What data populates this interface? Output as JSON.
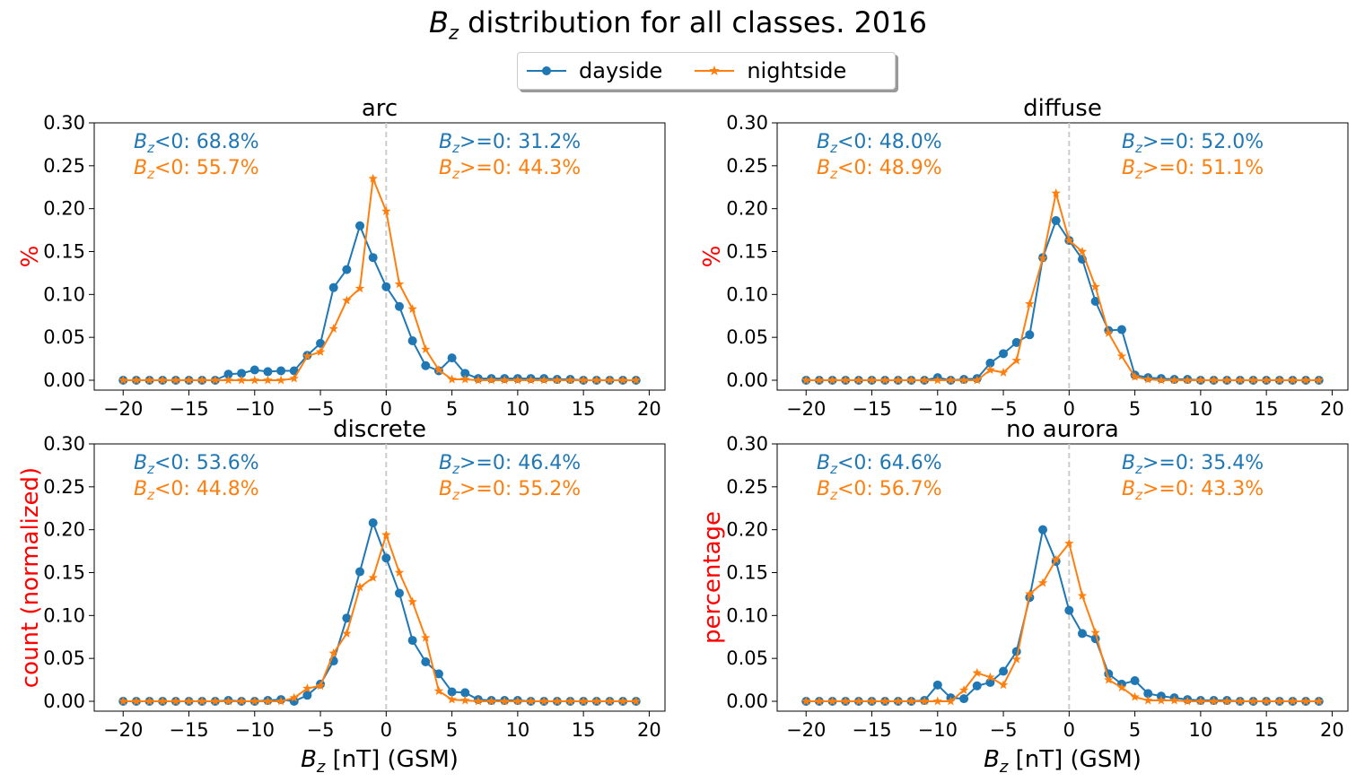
{
  "figure": {
    "title_prefix": "B",
    "title_sub": "z",
    "title_rest": " distribution for all classes. 2016",
    "legend": [
      {
        "label": "dayside",
        "color": "#1f77b4",
        "marker": "circle"
      },
      {
        "label": "nightside",
        "color": "#ff7f0e",
        "marker": "star"
      }
    ],
    "xlabel_parts": {
      "var": "B",
      "sub": "z",
      "rest": " [nT] (GSM)"
    },
    "ylabel_color": "#ff0000"
  },
  "chart_data": [
    {
      "type": "line",
      "title": "arc",
      "ylabel": "%",
      "xlabel": "",
      "xlim": [
        -20,
        19
      ],
      "ylim": [
        0,
        0.3
      ],
      "xticks": [
        -20,
        -15,
        -10,
        -5,
        0,
        5,
        10,
        15,
        20
      ],
      "yticks": [
        "0.00",
        "0.05",
        "0.10",
        "0.15",
        "0.20",
        "0.25",
        "0.30"
      ],
      "x": [
        -20,
        -19,
        -18,
        -17,
        -16,
        -15,
        -14,
        -13,
        -12,
        -11,
        -10,
        -9,
        -8,
        -7,
        -6,
        -5,
        -4,
        -3,
        -2,
        -1,
        0,
        1,
        2,
        3,
        4,
        5,
        6,
        7,
        8,
        9,
        10,
        11,
        12,
        13,
        14,
        15,
        16,
        17,
        18,
        19
      ],
      "series": [
        {
          "name": "dayside",
          "color": "#1f77b4",
          "marker": "circle",
          "values": [
            0,
            0,
            0,
            0,
            0,
            0,
            0,
            0,
            0.007,
            0.008,
            0.012,
            0.01,
            0.011,
            0.011,
            0.029,
            0.043,
            0.108,
            0.129,
            0.18,
            0.143,
            0.109,
            0.086,
            0.046,
            0.017,
            0.011,
            0.026,
            0.008,
            0.002,
            0.002,
            0.002,
            0.002,
            0.002,
            0.002,
            0.001,
            0.001,
            0,
            0,
            0,
            0,
            0
          ]
        },
        {
          "name": "nightside",
          "color": "#ff7f0e",
          "marker": "star",
          "values": [
            0,
            0,
            0,
            0,
            0,
            0,
            0,
            0,
            0,
            0,
            0,
            0,
            0,
            0.002,
            0.028,
            0.033,
            0.06,
            0.093,
            0.107,
            0.235,
            0.197,
            0.112,
            0.083,
            0.036,
            0.012,
            0.001,
            0.001,
            0,
            0,
            0,
            0,
            0,
            0,
            0,
            0,
            0,
            0,
            0,
            0,
            0
          ]
        }
      ],
      "annotations": [
        {
          "prefix": "B",
          "sub": "z",
          "rest": "<0:  68.8%",
          "color": "#1f77b4",
          "side": "left",
          "row": 0
        },
        {
          "prefix": "B",
          "sub": "z",
          "rest": "<0:  55.7%",
          "color": "#ff7f0e",
          "side": "left",
          "row": 1
        },
        {
          "prefix": "B",
          "sub": "z",
          "rest": ">=0: 31.2%",
          "color": "#1f77b4",
          "side": "right",
          "row": 0
        },
        {
          "prefix": "B",
          "sub": "z",
          "rest": ">=0: 44.3%",
          "color": "#ff7f0e",
          "side": "right",
          "row": 1
        }
      ]
    },
    {
      "type": "line",
      "title": "diffuse",
      "ylabel": "%",
      "xlabel": "",
      "xlim": [
        -20,
        19
      ],
      "ylim": [
        0,
        0.3
      ],
      "xticks": [
        -20,
        -15,
        -10,
        -5,
        0,
        5,
        10,
        15,
        20
      ],
      "yticks": [
        "0.00",
        "0.05",
        "0.10",
        "0.15",
        "0.20",
        "0.25",
        "0.30"
      ],
      "x": [
        -20,
        -19,
        -18,
        -17,
        -16,
        -15,
        -14,
        -13,
        -12,
        -11,
        -10,
        -9,
        -8,
        -7,
        -6,
        -5,
        -4,
        -3,
        -2,
        -1,
        0,
        1,
        2,
        3,
        4,
        5,
        6,
        7,
        8,
        9,
        10,
        11,
        12,
        13,
        14,
        15,
        16,
        17,
        18,
        19
      ],
      "series": [
        {
          "name": "dayside",
          "color": "#1f77b4",
          "marker": "circle",
          "values": [
            0,
            0,
            0,
            0,
            0,
            0,
            0,
            0,
            0,
            0,
            0.003,
            0,
            0.001,
            0.002,
            0.02,
            0.031,
            0.044,
            0.053,
            0.143,
            0.186,
            0.163,
            0.141,
            0.092,
            0.058,
            0.059,
            0.006,
            0.003,
            0.002,
            0.001,
            0.001,
            0,
            0,
            0,
            0,
            0,
            0,
            0,
            0,
            0,
            0
          ]
        },
        {
          "name": "nightside",
          "color": "#ff7f0e",
          "marker": "star",
          "values": [
            0,
            0,
            0,
            0,
            0,
            0,
            0,
            0,
            0,
            0,
            0,
            0,
            0,
            0,
            0.012,
            0.009,
            0.023,
            0.089,
            0.142,
            0.218,
            0.163,
            0.15,
            0.109,
            0.055,
            0.028,
            0.004,
            0.001,
            0,
            0,
            0,
            0,
            0,
            0,
            0,
            0,
            0,
            0,
            0,
            0,
            0
          ]
        }
      ],
      "annotations": [
        {
          "prefix": "B",
          "sub": "z",
          "rest": "<0:  48.0%",
          "color": "#1f77b4",
          "side": "left",
          "row": 0
        },
        {
          "prefix": "B",
          "sub": "z",
          "rest": "<0:  48.9%",
          "color": "#ff7f0e",
          "side": "left",
          "row": 1
        },
        {
          "prefix": "B",
          "sub": "z",
          "rest": ">=0: 52.0%",
          "color": "#1f77b4",
          "side": "right",
          "row": 0
        },
        {
          "prefix": "B",
          "sub": "z",
          "rest": ">=0: 51.1%",
          "color": "#ff7f0e",
          "side": "right",
          "row": 1
        }
      ]
    },
    {
      "type": "line",
      "title": "discrete",
      "ylabel": "count (normalized)",
      "xlabel": "Bz [nT] (GSM)",
      "xlim": [
        -20,
        19
      ],
      "ylim": [
        0,
        0.3
      ],
      "xticks": [
        -20,
        -15,
        -10,
        -5,
        0,
        5,
        10,
        15,
        20
      ],
      "yticks": [
        "0.00",
        "0.05",
        "0.10",
        "0.15",
        "0.20",
        "0.25",
        "0.30"
      ],
      "x": [
        -20,
        -19,
        -18,
        -17,
        -16,
        -15,
        -14,
        -13,
        -12,
        -11,
        -10,
        -9,
        -8,
        -7,
        -6,
        -5,
        -4,
        -3,
        -2,
        -1,
        0,
        1,
        2,
        3,
        4,
        5,
        6,
        7,
        8,
        9,
        10,
        11,
        12,
        13,
        14,
        15,
        16,
        17,
        18,
        19
      ],
      "series": [
        {
          "name": "dayside",
          "color": "#1f77b4",
          "marker": "circle",
          "values": [
            0,
            0,
            0,
            0,
            0,
            0,
            0,
            0,
            0.001,
            0,
            0,
            0.001,
            0.002,
            0,
            0.007,
            0.02,
            0.047,
            0.097,
            0.151,
            0.208,
            0.167,
            0.126,
            0.071,
            0.046,
            0.032,
            0.011,
            0.01,
            0.002,
            0.001,
            0.001,
            0.001,
            0,
            0,
            0,
            0,
            0,
            0,
            0,
            0,
            0
          ]
        },
        {
          "name": "nightside",
          "color": "#ff7f0e",
          "marker": "star",
          "values": [
            0,
            0,
            0,
            0,
            0,
            0,
            0,
            0,
            0,
            0,
            0,
            0,
            0,
            0.004,
            0.015,
            0.018,
            0.056,
            0.079,
            0.133,
            0.144,
            0.194,
            0.15,
            0.116,
            0.074,
            0.012,
            0.002,
            0.001,
            0,
            0,
            0,
            0,
            0,
            0,
            0,
            0,
            0,
            0,
            0,
            0,
            0
          ]
        }
      ],
      "annotations": [
        {
          "prefix": "B",
          "sub": "z",
          "rest": "<0:  53.6%",
          "color": "#1f77b4",
          "side": "left",
          "row": 0
        },
        {
          "prefix": "B",
          "sub": "z",
          "rest": "<0:  44.8%",
          "color": "#ff7f0e",
          "side": "left",
          "row": 1
        },
        {
          "prefix": "B",
          "sub": "z",
          "rest": ">=0: 46.4%",
          "color": "#1f77b4",
          "side": "right",
          "row": 0
        },
        {
          "prefix": "B",
          "sub": "z",
          "rest": ">=0: 55.2%",
          "color": "#ff7f0e",
          "side": "right",
          "row": 1
        }
      ]
    },
    {
      "type": "line",
      "title": "no aurora",
      "ylabel": "percentage",
      "xlabel": "Bz [nT] (GSM)",
      "xlim": [
        -20,
        19
      ],
      "ylim": [
        0,
        0.3
      ],
      "xticks": [
        -20,
        -15,
        -10,
        -5,
        0,
        5,
        10,
        15,
        20
      ],
      "yticks": [
        "0.00",
        "0.05",
        "0.10",
        "0.15",
        "0.20",
        "0.25",
        "0.30"
      ],
      "x": [
        -20,
        -19,
        -18,
        -17,
        -16,
        -15,
        -14,
        -13,
        -12,
        -11,
        -10,
        -9,
        -8,
        -7,
        -6,
        -5,
        -4,
        -3,
        -2,
        -1,
        0,
        1,
        2,
        3,
        4,
        5,
        6,
        7,
        8,
        9,
        10,
        11,
        12,
        13,
        14,
        15,
        16,
        17,
        18,
        19
      ],
      "series": [
        {
          "name": "dayside",
          "color": "#1f77b4",
          "marker": "circle",
          "values": [
            0,
            0,
            0,
            0,
            0,
            0,
            0,
            0,
            0,
            0.001,
            0.019,
            0.004,
            0.003,
            0.018,
            0.022,
            0.035,
            0.058,
            0.121,
            0.2,
            0.163,
            0.106,
            0.079,
            0.073,
            0.032,
            0.02,
            0.024,
            0.009,
            0.006,
            0.004,
            0.002,
            0.001,
            0.001,
            0.001,
            0,
            0,
            0,
            0,
            0,
            0,
            0
          ]
        },
        {
          "name": "nightside",
          "color": "#ff7f0e",
          "marker": "star",
          "values": [
            0,
            0,
            0,
            0,
            0,
            0,
            0,
            0,
            0,
            0,
            0,
            0,
            0.013,
            0.033,
            0.028,
            0.019,
            0.049,
            0.125,
            0.138,
            0.165,
            0.184,
            0.123,
            0.08,
            0.025,
            0.016,
            0.005,
            0.001,
            0.001,
            0.001,
            0,
            0,
            0,
            0,
            0,
            0,
            0,
            0,
            0,
            0,
            0
          ]
        }
      ],
      "annotations": [
        {
          "prefix": "B",
          "sub": "z",
          "rest": "<0:  64.6%",
          "color": "#1f77b4",
          "side": "left",
          "row": 0
        },
        {
          "prefix": "B",
          "sub": "z",
          "rest": "<0:  56.7%",
          "color": "#ff7f0e",
          "side": "left",
          "row": 1
        },
        {
          "prefix": "B",
          "sub": "z",
          "rest": ">=0: 35.4%",
          "color": "#1f77b4",
          "side": "right",
          "row": 0
        },
        {
          "prefix": "B",
          "sub": "z",
          "rest": ">=0: 43.3%",
          "color": "#ff7f0e",
          "side": "right",
          "row": 1
        }
      ]
    }
  ]
}
